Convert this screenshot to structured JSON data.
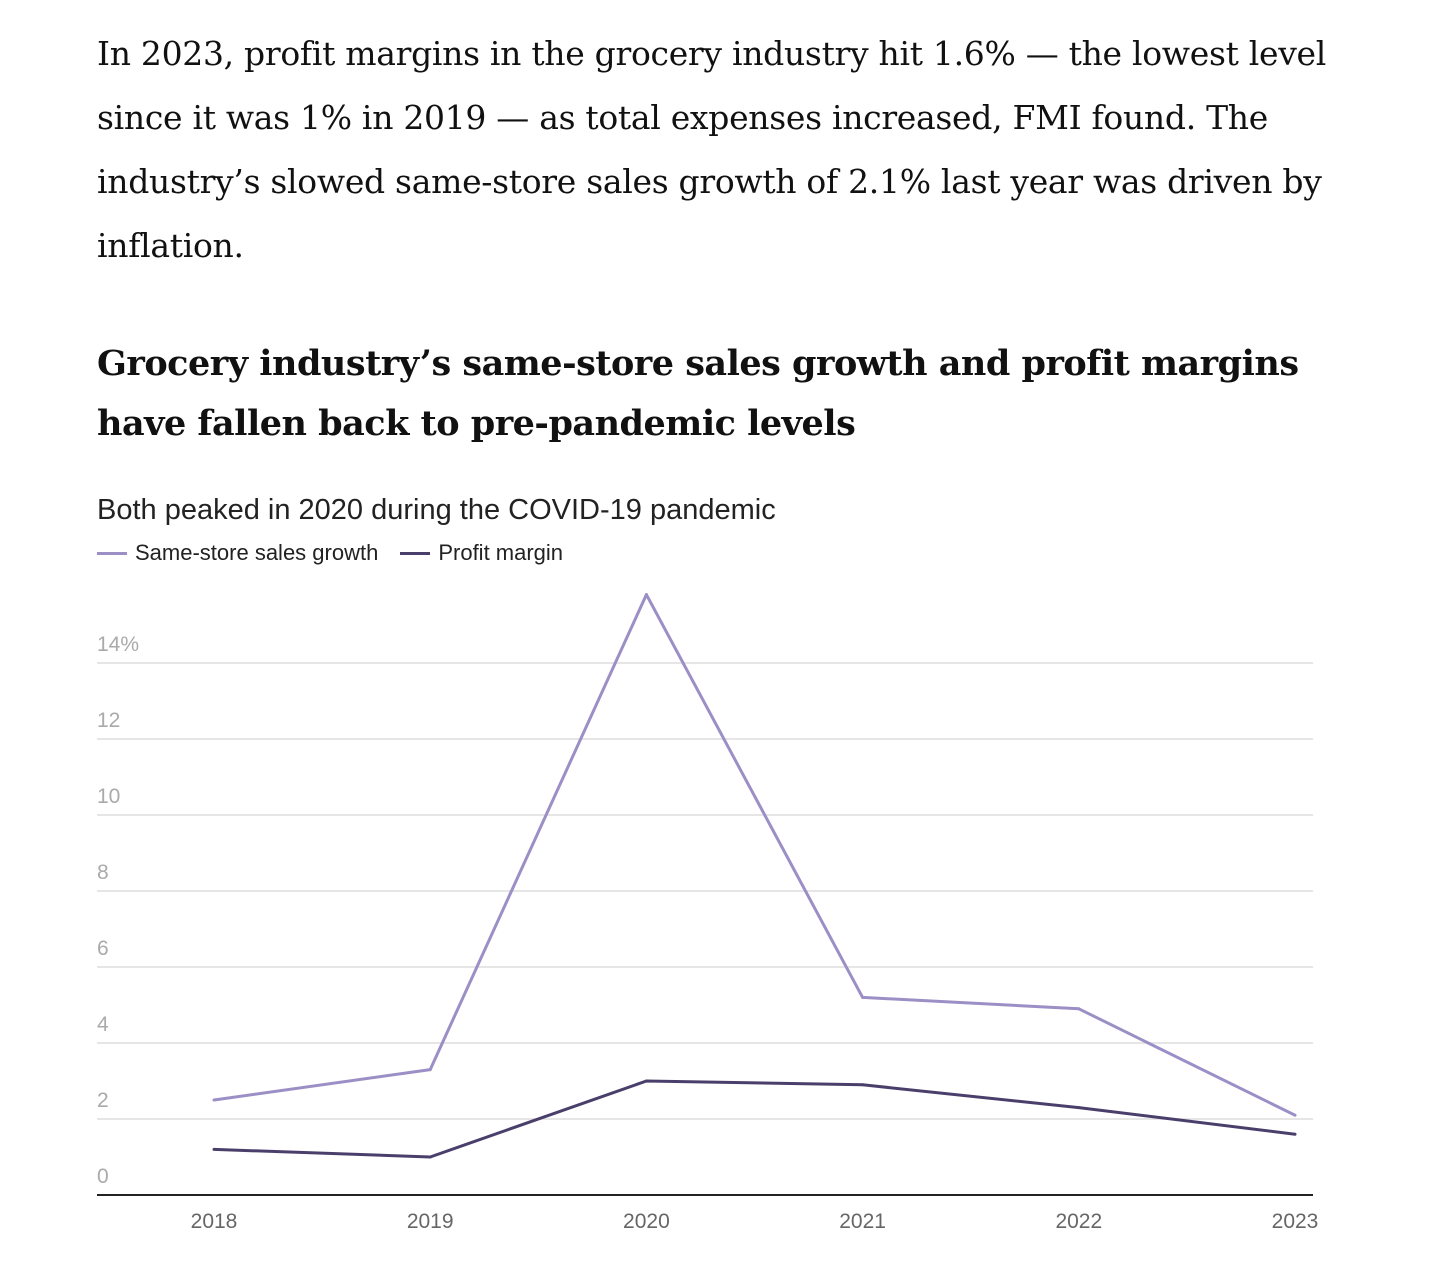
{
  "article": {
    "paragraph": "In 2023, profit margins in the grocery industry hit 1.6% — the lowest level since it was 1% in 2019 — as total expenses increased, FMI found. The industry’s slowed same-store sales growth of 2.1% last year was driven by inflation."
  },
  "chart_data": {
    "type": "line",
    "title": "Grocery industry’s same-store sales growth and profit margins have fallen back to pre-pandemic levels",
    "subtitle": "Both peaked in 2020 during the COVID-19 pandemic",
    "x": [
      "2018",
      "2019",
      "2020",
      "2021",
      "2022",
      "2023"
    ],
    "series": [
      {
        "name": "Same-store sales growth",
        "color": "#9b8fc6",
        "values": [
          2.5,
          3.3,
          15.8,
          5.2,
          4.9,
          2.1
        ]
      },
      {
        "name": "Profit margin",
        "color": "#4a3f6b",
        "values": [
          1.2,
          1.0,
          3.0,
          2.9,
          2.3,
          1.6
        ]
      }
    ],
    "yticks": [
      0,
      2,
      4,
      6,
      8,
      10,
      12,
      14
    ],
    "ytick_labels": [
      "0",
      "2",
      "4",
      "6",
      "8",
      "10",
      "12",
      "14%"
    ],
    "ylim": [
      0,
      16
    ],
    "xlabel": "",
    "ylabel": "",
    "grid": true,
    "legend": "top-left"
  }
}
